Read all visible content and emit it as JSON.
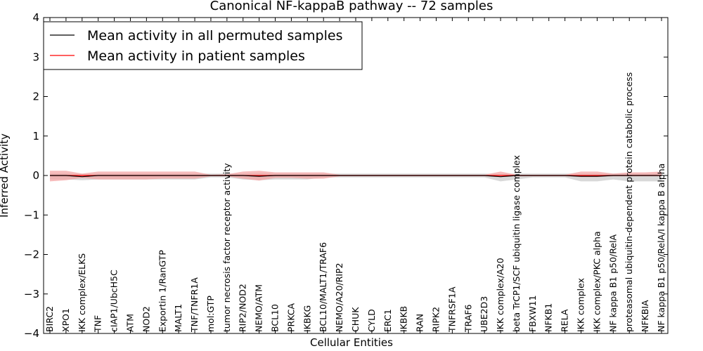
{
  "chart_data": {
    "type": "line",
    "title": "Canonical NF-kappaB pathway -- 72 samples",
    "xlabel": "Cellular Entities",
    "ylabel": "Inferred Activity",
    "ylim": [
      -4,
      4
    ],
    "yticks": [
      "−4",
      "−3",
      "−2",
      "−1",
      "0",
      "1",
      "2",
      "3",
      "4"
    ],
    "grid": false,
    "legend_position": "top-left",
    "categories": [
      "BIRC2",
      "XPO1",
      "IKK complex/ELKS",
      "TNF",
      "cIAP1/UbcH5C",
      "ATM",
      "NOD2",
      "Exportin 1/RanGTP",
      "MALT1",
      "TNF/TNFR1A",
      "mol:GTP",
      "tumor necrosis factor receptor activity",
      "RIP2/NOD2",
      "NEMO/ATM",
      "BCL10",
      "PRKCA",
      "IKBKG",
      "BCL10/MALT1/TRAF6",
      "NEMO/A20/RIP2",
      "CHUK",
      "CYLD",
      "ERC1",
      "IKBKB",
      "RAN",
      "RIPK2",
      "TNFRSF1A",
      "TRAF6",
      "UBE2D3",
      "IKK complex/A20",
      "beta TrCP1/SCF ubiquitin ligase complex",
      "FBXW11",
      "NFKB1",
      "RELA",
      "IKK complex",
      "IKK complex/PKC alpha",
      "NF kappa B1 p50/RelA",
      "proteasomal ubiquitin-dependent protein catabolic process",
      "NFKBIA",
      "NF kappa B1 p50/RelA/I kappa B alpha"
    ],
    "series": [
      {
        "name": "Mean activity in all permuted samples",
        "color": "#000000",
        "values": [
          0.0,
          0.0,
          -0.03,
          0.0,
          0.0,
          0.0,
          0.0,
          0.0,
          0.0,
          0.0,
          0.0,
          0.0,
          0.0,
          -0.02,
          0.0,
          0.0,
          0.0,
          0.0,
          0.0,
          0.0,
          0.0,
          0.0,
          0.0,
          0.0,
          0.0,
          0.0,
          0.0,
          0.0,
          -0.03,
          0.0,
          0.0,
          0.0,
          0.0,
          -0.02,
          -0.02,
          0.0,
          0.0,
          0.0,
          0.0
        ],
        "band_upper": [
          0.05,
          0.05,
          0.04,
          0.05,
          0.05,
          0.05,
          0.05,
          0.05,
          0.05,
          0.05,
          0.05,
          0.05,
          0.05,
          0.06,
          0.05,
          0.05,
          0.05,
          0.05,
          0.05,
          0.05,
          0.05,
          0.05,
          0.05,
          0.05,
          0.05,
          0.05,
          0.05,
          0.05,
          0.04,
          0.05,
          0.05,
          0.05,
          0.05,
          0.05,
          0.05,
          0.05,
          0.05,
          0.05,
          0.05
        ],
        "band_lower": [
          -0.1,
          -0.1,
          -0.12,
          -0.1,
          -0.1,
          -0.1,
          -0.1,
          -0.1,
          -0.1,
          -0.1,
          -0.05,
          -0.05,
          -0.1,
          -0.12,
          -0.1,
          -0.1,
          -0.1,
          -0.05,
          -0.05,
          -0.05,
          -0.05,
          -0.05,
          -0.05,
          -0.05,
          -0.05,
          -0.05,
          -0.05,
          -0.05,
          -0.15,
          -0.1,
          -0.05,
          -0.05,
          -0.05,
          -0.15,
          -0.15,
          -0.1,
          -0.15,
          -0.15,
          -0.15
        ],
        "band_color": "#cccccc"
      },
      {
        "name": "Mean activity in patient samples",
        "color": "#ff0000",
        "values": [
          0.0,
          0.0,
          0.0,
          0.0,
          0.0,
          0.0,
          0.0,
          0.0,
          0.0,
          0.0,
          0.0,
          0.0,
          0.0,
          0.0,
          0.0,
          0.0,
          0.0,
          0.0,
          0.0,
          0.0,
          0.0,
          0.0,
          0.0,
          0.0,
          0.0,
          0.0,
          0.0,
          0.0,
          0.0,
          0.0,
          0.0,
          0.0,
          0.0,
          0.0,
          0.0,
          0.0,
          0.0,
          0.0,
          0.0
        ],
        "band_upper": [
          0.12,
          0.12,
          0.05,
          0.1,
          0.1,
          0.1,
          0.1,
          0.1,
          0.1,
          0.1,
          0.02,
          0.03,
          0.1,
          0.12,
          0.08,
          0.08,
          0.08,
          0.08,
          0.02,
          0.02,
          0.02,
          0.02,
          0.02,
          0.02,
          0.02,
          0.02,
          0.02,
          0.02,
          0.1,
          0.02,
          0.02,
          0.02,
          0.02,
          0.1,
          0.1,
          0.05,
          0.08,
          0.08,
          0.1
        ],
        "band_lower": [
          -0.15,
          -0.12,
          -0.06,
          -0.1,
          -0.1,
          -0.1,
          -0.1,
          -0.08,
          -0.08,
          -0.08,
          -0.02,
          -0.02,
          -0.08,
          -0.13,
          -0.06,
          -0.06,
          -0.08,
          -0.08,
          -0.02,
          -0.02,
          -0.02,
          -0.02,
          -0.02,
          -0.02,
          -0.02,
          -0.02,
          -0.02,
          -0.02,
          -0.04,
          -0.02,
          -0.02,
          -0.02,
          -0.02,
          -0.04,
          -0.04,
          -0.02,
          -0.02,
          -0.02,
          -0.02
        ],
        "band_color": "#f4a0a0"
      }
    ]
  }
}
